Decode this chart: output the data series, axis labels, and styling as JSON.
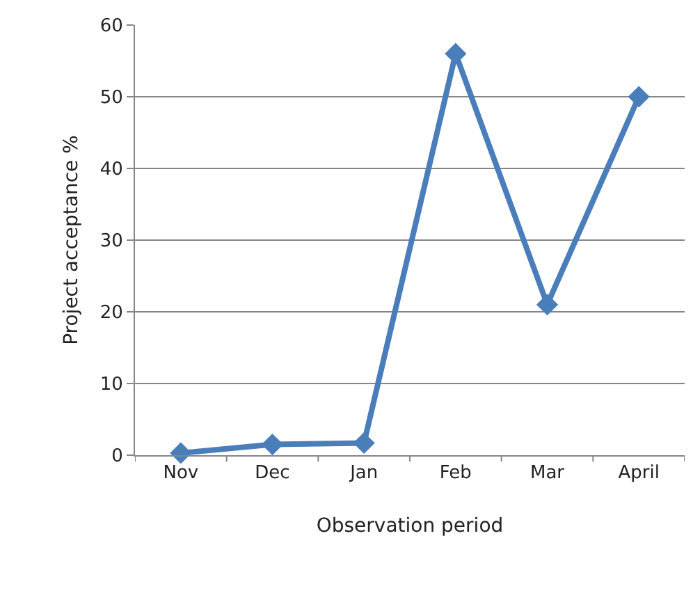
{
  "chart_data": {
    "type": "line",
    "xlabel": "Observation period",
    "ylabel": "Project acceptance %",
    "categories": [
      "Nov",
      "Dec",
      "Jan",
      "Feb",
      "Mar",
      "April"
    ],
    "series": [
      {
        "color": "#4a7ebb",
        "values": [
          0.3,
          1.5,
          1.7,
          56,
          21,
          50
        ]
      }
    ],
    "ylim": [
      0,
      60
    ],
    "yticks": [
      0,
      10,
      20,
      30,
      40,
      50,
      60
    ],
    "grid": "y",
    "marker": "diamond",
    "line_style": "solid"
  }
}
